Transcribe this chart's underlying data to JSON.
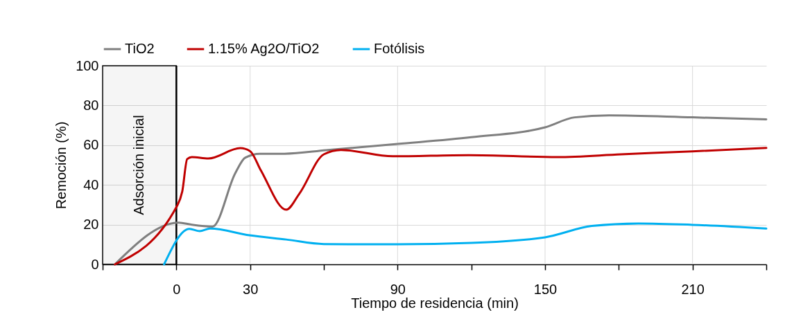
{
  "chart_data": {
    "type": "line",
    "xlabel": "Tiempo de residencia (min)",
    "ylabel": "Remoción (%)",
    "xlim": [
      -30,
      240
    ],
    "ylim": [
      0,
      100
    ],
    "xticks": [
      {
        "value": -30,
        "label": null
      },
      0,
      30,
      {
        "value": 60,
        "label": null
      },
      90,
      {
        "value": 120,
        "label": null
      },
      150,
      {
        "value": 180,
        "label": null
      },
      210,
      {
        "value": 240,
        "label": null
      }
    ],
    "yticks": [
      0,
      20,
      40,
      60,
      80,
      100
    ],
    "grid": true,
    "legend": "top",
    "marker": "none",
    "line_style": "solid",
    "bands": [
      {
        "axis": "x",
        "from": -30,
        "to": 0,
        "label": "Adsorción inicial",
        "color": "#000000"
      }
    ],
    "series": [
      {
        "name": "TiO2",
        "color": "#7f7f7f",
        "x": [
          -25,
          1,
          6,
          14.7,
          24,
          28,
          34,
          44,
          61,
          90,
          120,
          150,
          162,
          176,
          210,
          240
        ],
        "values": [
          0,
          21,
          20,
          19,
          46,
          53.7,
          55.7,
          55.7,
          57.5,
          60.6,
          64,
          69,
          74,
          75,
          74,
          73
        ]
      },
      {
        "name": "1.15% Ag2O/TiO2",
        "color": "#c00000",
        "x": [
          -25,
          0.4,
          2.4,
          4.4,
          6.3,
          13,
          26,
          30,
          34.5,
          44.7,
          50,
          60,
          67,
          88,
          119,
          155,
          181,
          210,
          240
        ],
        "values": [
          0,
          29.7,
          36.7,
          53,
          54,
          53.3,
          58.5,
          57,
          47,
          27.5,
          35.5,
          55.4,
          57.6,
          54.4,
          55,
          54,
          55.4,
          56.9,
          58.6
        ]
      },
      {
        "name": "Fotólisis",
        "color": "#00b0f0",
        "x": [
          -5,
          5.3,
          9.5,
          13.7,
          29.8,
          44.7,
          60,
          90,
          120,
          150,
          169,
          188,
          210,
          240
        ],
        "values": [
          0,
          17.9,
          16.7,
          18,
          14.6,
          12.5,
          10.2,
          10.1,
          10.8,
          13.6,
          19.3,
          20.6,
          19.9,
          18
        ]
      }
    ]
  }
}
